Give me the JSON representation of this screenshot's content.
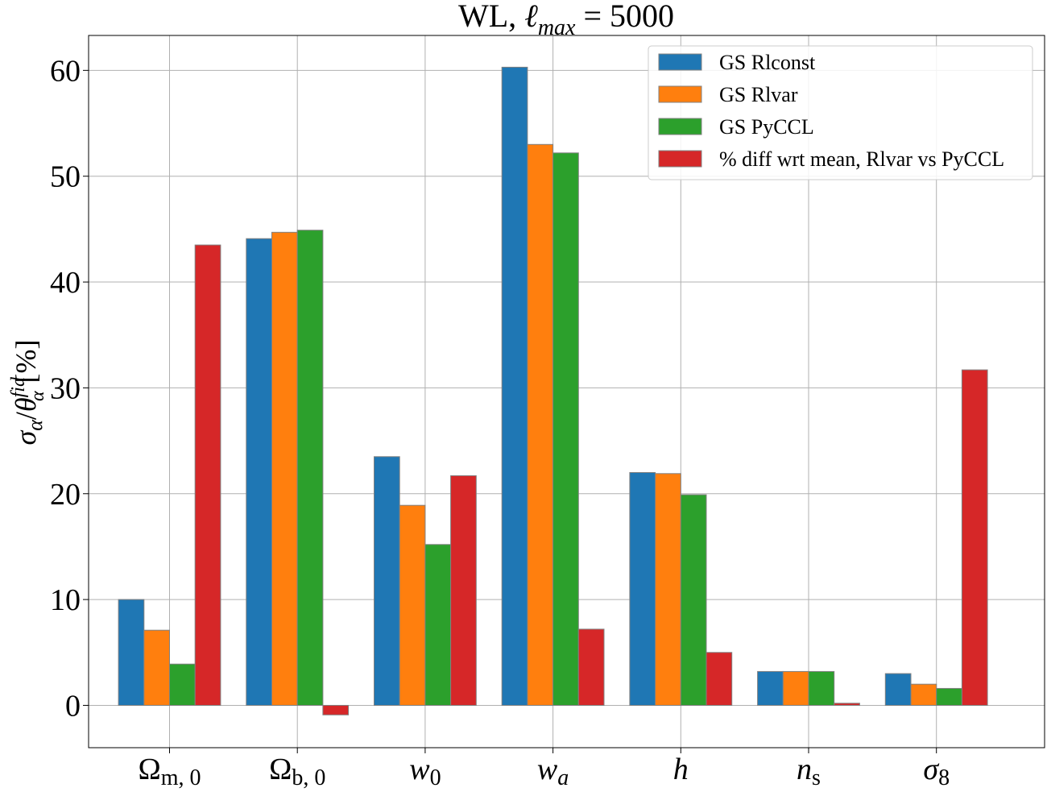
{
  "chart_data": {
    "type": "bar",
    "title": "WL, ℓ_max = 5000",
    "title_parts": {
      "prefix": "WL, ",
      "ell": "ℓ",
      "sub": "max",
      "suffix": " = 5000"
    },
    "ylabel": "σ_α/θ_α^fid [%]",
    "ylabel_parts": {
      "sigma": "σ",
      "alpha": "α",
      "slash": "/",
      "theta": "θ",
      "sup": "fid",
      "unit": "[%]"
    },
    "xlabel": "",
    "ylim": [
      -4,
      63.3
    ],
    "yticks": [
      0,
      10,
      20,
      30,
      40,
      50,
      60
    ],
    "grid": true,
    "legend_position": "top-right",
    "categories": [
      {
        "base": "Ω",
        "sub": "m, 0",
        "italic": false
      },
      {
        "base": "Ω",
        "sub": "b, 0",
        "italic": false
      },
      {
        "base": "w",
        "sub": "0",
        "italic": true
      },
      {
        "base": "w",
        "sub": "a",
        "italic": true
      },
      {
        "base": "h",
        "sub": "",
        "italic": true
      },
      {
        "base": "n",
        "sub": "s",
        "italic": true
      },
      {
        "base": "σ",
        "sub": "8",
        "italic": true
      }
    ],
    "series": [
      {
        "name": "GS Rlconst",
        "color": "#1f77b4",
        "values": [
          10.0,
          44.1,
          23.5,
          60.3,
          22.0,
          3.2,
          3.0
        ]
      },
      {
        "name": "GS Rlvar",
        "color": "#ff7f0e",
        "values": [
          7.1,
          44.7,
          18.9,
          53.0,
          21.9,
          3.2,
          2.0
        ]
      },
      {
        "name": "GS PyCCL",
        "color": "#2ca02c",
        "values": [
          3.9,
          44.9,
          15.2,
          52.2,
          19.9,
          3.2,
          1.6
        ]
      },
      {
        "name": "% diff wrt mean, Rlvar vs PyCCL",
        "color": "#d62728",
        "values": [
          43.5,
          -0.9,
          21.7,
          7.2,
          5.0,
          0.2,
          31.7
        ]
      }
    ]
  }
}
